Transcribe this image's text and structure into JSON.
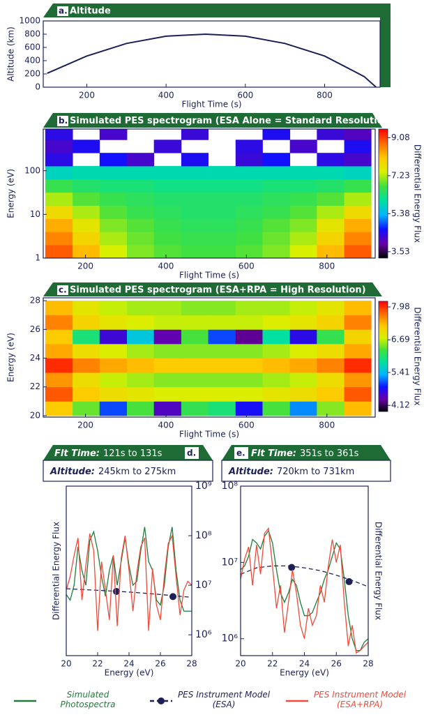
{
  "chart_data": [
    {
      "type": "line",
      "label": "a.",
      "title": "Altitude",
      "x_label": "Flight Time (s)",
      "y_label": "Altitude (km)",
      "x": [
        100,
        200,
        300,
        400,
        500,
        600,
        700,
        800,
        900,
        930
      ],
      "series": [
        {
          "color": "#1b2157",
          "values": [
            210,
            470,
            660,
            770,
            800,
            770,
            660,
            470,
            160,
            0
          ]
        }
      ],
      "xlim": [
        90,
        940
      ],
      "ylim": [
        0,
        1000
      ],
      "xticks": [
        200,
        400,
        600,
        800
      ],
      "yticks": [
        0,
        200,
        400,
        600,
        800,
        1000
      ]
    },
    {
      "type": "heatmap",
      "label": "b.",
      "title": "Simulated PES spectrogram (ESA Alone = Standard Resolution)",
      "x_label": "Flight Time (s)",
      "y_label": "Energy (eV)",
      "colorbar_label": "Differential Energy Flux",
      "y_log": true,
      "xlim": [
        95,
        920
      ],
      "ylim": [
        1,
        900
      ],
      "xticks": [
        200,
        400,
        600,
        800
      ],
      "yticks": [
        1,
        10,
        100
      ],
      "clim": [
        3.22,
        9.5
      ],
      "cticks": [
        3.53,
        5.38,
        7.23,
        9.08
      ],
      "colormap": [
        "#000000",
        "#6a00a8",
        "#1010ff",
        "#00b4ff",
        "#00e0a0",
        "#40e040",
        "#d8f000",
        "#ffc800",
        "#ff6a00",
        "#ff0000"
      ],
      "x_bins": [
        100,
        168,
        235,
        303,
        370,
        438,
        505,
        573,
        640,
        708,
        775,
        843,
        910
      ],
      "y_bins": [
        1,
        2,
        4,
        8,
        16,
        32,
        64,
        128,
        256,
        512,
        900
      ],
      "values": [
        [
          8.9,
          8.2,
          7.4,
          7.0,
          6.8,
          6.7,
          6.7,
          6.8,
          7.0,
          7.4,
          8.2,
          8.9
        ],
        [
          8.6,
          7.9,
          7.2,
          6.9,
          6.7,
          6.6,
          6.6,
          6.7,
          6.9,
          7.2,
          7.9,
          8.6
        ],
        [
          8.3,
          7.6,
          7.0,
          6.8,
          6.6,
          6.5,
          6.5,
          6.6,
          6.8,
          7.0,
          7.6,
          8.3
        ],
        [
          7.8,
          7.2,
          6.8,
          6.6,
          6.5,
          6.4,
          6.4,
          6.5,
          6.6,
          6.8,
          7.2,
          7.8
        ],
        [
          7.2,
          6.8,
          6.6,
          6.5,
          6.4,
          6.4,
          6.4,
          6.4,
          6.5,
          6.6,
          6.8,
          7.2
        ],
        [
          6.6,
          6.4,
          6.3,
          6.3,
          6.2,
          6.2,
          6.2,
          6.2,
          6.3,
          6.3,
          6.4,
          6.6
        ],
        [
          5.8,
          5.9,
          5.9,
          5.9,
          5.9,
          5.9,
          5.9,
          5.9,
          5.9,
          5.9,
          5.9,
          5.8
        ],
        [
          4.4,
          null,
          4.6,
          4.2,
          null,
          4.5,
          null,
          4.3,
          4.6,
          null,
          4.4,
          4.2
        ],
        [
          4.2,
          4.5,
          null,
          null,
          4.3,
          null,
          null,
          4.4,
          null,
          4.2,
          null,
          4.5
        ],
        [
          4.4,
          null,
          4.2,
          null,
          null,
          4.3,
          null,
          null,
          4.5,
          null,
          4.3,
          4.1
        ]
      ]
    },
    {
      "type": "heatmap",
      "label": "c.",
      "title": "Simulated PES spectrogram (ESA+RPA = High Resolution)",
      "x_label": "Flight Time (s)",
      "y_label": "Energy (eV)",
      "colorbar_label": "Differential Energy Flux",
      "y_log": false,
      "xlim": [
        95,
        920
      ],
      "ylim": [
        19.9,
        28.2
      ],
      "xticks": [
        200,
        400,
        600,
        800
      ],
      "yticks": [
        20,
        22,
        24,
        26,
        28
      ],
      "clim": [
        3.88,
        8.2
      ],
      "cticks": [
        4.12,
        5.41,
        6.69,
        7.98
      ],
      "colormap": [
        "#000000",
        "#6a00a8",
        "#1010ff",
        "#00b4ff",
        "#00e0a0",
        "#40e040",
        "#d8f000",
        "#ffc800",
        "#ff6a00",
        "#ff0000"
      ],
      "x_bins": [
        100,
        168,
        235,
        303,
        370,
        438,
        505,
        573,
        640,
        708,
        775,
        843,
        910
      ],
      "y_bins": [
        20,
        21,
        22,
        23,
        24,
        25,
        26,
        27,
        28
      ],
      "values": [
        [
          7.2,
          6.4,
          5.0,
          6.3,
          4.5,
          6.2,
          6.0,
          4.8,
          6.3,
          5.2,
          6.5,
          7.3
        ],
        [
          7.8,
          7.2,
          7.0,
          6.9,
          6.8,
          6.8,
          6.8,
          6.8,
          6.9,
          7.0,
          7.2,
          7.8
        ],
        [
          7.5,
          7.0,
          6.7,
          6.6,
          6.5,
          6.5,
          6.5,
          6.5,
          6.6,
          6.7,
          7.0,
          7.5
        ],
        [
          8.0,
          7.6,
          7.4,
          7.3,
          7.2,
          7.2,
          7.2,
          7.2,
          7.3,
          7.4,
          7.6,
          8.0
        ],
        [
          7.4,
          7.0,
          6.8,
          6.6,
          6.5,
          6.5,
          6.5,
          6.5,
          6.6,
          6.8,
          7.0,
          7.4
        ],
        [
          7.2,
          6.0,
          4.6,
          5.5,
          4.4,
          6.3,
          5.0,
          4.3,
          5.8,
          4.7,
          6.2,
          7.1
        ],
        [
          7.6,
          7.1,
          6.9,
          6.8,
          6.7,
          6.7,
          6.7,
          6.7,
          6.8,
          6.9,
          7.1,
          7.6
        ],
        [
          7.3,
          6.9,
          6.7,
          6.6,
          6.6,
          6.5,
          6.5,
          6.6,
          6.6,
          6.7,
          6.9,
          7.3
        ]
      ]
    },
    {
      "type": "line",
      "label": "d.",
      "label_side": "right",
      "time_label": "Flt Time:",
      "time_range": "121s to 131s",
      "altitude_label": "Altitude:",
      "altitude_range": "245km to 275km",
      "x_label": "Energy (eV)",
      "y_label": "Differential Energy Flux",
      "y_axis_side": "right",
      "y_log": true,
      "xlim": [
        20,
        28
      ],
      "ylim": [
        380000,
        1000000000
      ],
      "xticks": [
        20,
        22,
        24,
        26,
        28
      ],
      "yticks": [
        {
          "value": 1000000,
          "label": "10⁶"
        },
        {
          "value": 10000000,
          "label": "10⁷"
        },
        {
          "value": 100000000,
          "label": "10⁸"
        },
        {
          "value": 1000000000,
          "label": "10⁹"
        }
      ],
      "x": [
        20,
        20.25,
        20.5,
        20.75,
        21,
        21.25,
        21.5,
        21.75,
        22,
        22.25,
        22.5,
        22.75,
        23,
        23.25,
        23.5,
        23.75,
        24,
        24.25,
        24.5,
        24.75,
        25,
        25.25,
        25.5,
        25.75,
        26,
        26.25,
        26.5,
        26.75,
        27,
        27.25,
        27.5,
        27.75,
        28
      ],
      "series": [
        {
          "name": "Simulated Photospectra",
          "color": "#1e7d3a",
          "values": [
            6500000.0,
            5000000.0,
            10000000.0,
            60000000.0,
            20000000.0,
            10000000.0,
            80000000.0,
            120000000.0,
            50000000.0,
            15000000.0,
            6000000.0,
            20000000.0,
            40000000.0,
            10000000.0,
            30000000.0,
            90000000.0,
            25000000.0,
            10000000.0,
            12000000.0,
            50000000.0,
            150000000.0,
            30000000.0,
            20000000.0,
            5000000.0,
            4000000.0,
            10000000.0,
            60000000.0,
            150000000.0,
            20000000.0,
            5000000.0,
            3000000.0,
            3000000.0,
            3000000.0
          ]
        },
        {
          "name": "PES Instrument Model (ESA)",
          "color": "#1b2157",
          "dash": true,
          "x": [
            20,
            21,
            22,
            23,
            24,
            25,
            26,
            27,
            28
          ],
          "values": [
            8500000.0,
            8200000.0,
            7900000.0,
            7600000.0,
            7300000.0,
            6900000.0,
            6500000.0,
            6100000.0,
            5700000.0
          ],
          "points_x": [
            23.2,
            26.8
          ],
          "points": [
            7500000.0,
            5900000.0
          ]
        },
        {
          "name": "PES Instrument Model (ESA+RPA)",
          "color": "#f04a3a",
          "values": [
            8000000.0,
            15000000.0,
            40000000.0,
            90000000.0,
            5000000.0,
            25000000.0,
            110000000.0,
            50000000.0,
            1200000.0,
            30000000.0,
            8000000.0,
            2000000.0,
            40000000.0,
            1500000.0,
            35000000.0,
            100000000.0,
            20000000.0,
            3000000.0,
            18000000.0,
            60000000.0,
            90000000.0,
            1200000.0,
            22000000.0,
            4000000.0,
            2000000.0,
            15000000.0,
            70000000.0,
            100000000.0,
            15000000.0,
            2500000.0,
            8000000.0,
            12000000.0,
            10000000.0
          ]
        }
      ]
    },
    {
      "type": "line",
      "label": "e.",
      "label_side": "left",
      "time_label": "Flt Time:",
      "time_range": "351s to 361s",
      "altitude_label": "Altitude:",
      "altitude_range": "720km to 731km",
      "x_label": "Energy (eV)",
      "y_label": "Differential Energy Flux",
      "y_axis_side": "left",
      "y_log": true,
      "xlim": [
        20,
        28
      ],
      "ylim": [
        600000,
        100000000
      ],
      "xticks": [
        20,
        22,
        24,
        26,
        28
      ],
      "yticks": [
        {
          "value": 1000000,
          "label": "10⁶"
        },
        {
          "value": 10000000,
          "label": "10⁷"
        },
        {
          "value": 100000000,
          "label": "10⁸"
        }
      ],
      "x": [
        20,
        20.25,
        20.5,
        20.75,
        21,
        21.25,
        21.5,
        21.75,
        22,
        22.25,
        22.5,
        22.75,
        23,
        23.25,
        23.5,
        23.75,
        24,
        24.25,
        24.5,
        24.75,
        25,
        25.25,
        25.5,
        25.75,
        26,
        26.25,
        26.5,
        26.75,
        27,
        27.25,
        27.5,
        27.75,
        28
      ],
      "series": [
        {
          "color": "#1e7d3a",
          "values": [
            8000000.0,
            9000000.0,
            12000000.0,
            20000000.0,
            18000000.0,
            15000000.0,
            22000000.0,
            26000000.0,
            18000000.0,
            8000000.0,
            4000000.0,
            3000000.0,
            4000000.0,
            6000000.0,
            5000000.0,
            3000000.0,
            2000000.0,
            2000000.0,
            2200000.0,
            3000000.0,
            4000000.0,
            6000000.0,
            8000000.0,
            12000000.0,
            18000000.0,
            15000000.0,
            6000000.0,
            2000000.0,
            1000000.0,
            700000.0,
            700000.0,
            900000.0,
            1000000.0
          ]
        },
        {
          "color": "#1b2157",
          "dash": true,
          "x": [
            20,
            21,
            22,
            23,
            24,
            25,
            26,
            27,
            28
          ],
          "values": [
            7000000.0,
            8500000.0,
            9000000.0,
            9000000.0,
            8500000.0,
            7800000.0,
            6800000.0,
            5800000.0,
            4800000.0
          ],
          "points_x": [
            23.2,
            26.8
          ],
          "points": [
            8600000.0,
            5600000.0
          ]
        },
        {
          "color": "#f04a3a",
          "values": [
            6000000.0,
            11000000.0,
            16000000.0,
            5000000.0,
            17000000.0,
            7000000.0,
            24000000.0,
            28000000.0,
            9000000.0,
            2500000.0,
            5000000.0,
            1200000.0,
            3000000.0,
            8000000.0,
            4000000.0,
            1500000.0,
            1000000.0,
            2500000.0,
            1500000.0,
            2000000.0,
            5000000.0,
            3000000.0,
            9000000.0,
            20000000.0,
            10000000.0,
            17000000.0,
            3000000.0,
            800000.0,
            1500000.0,
            650000.0,
            700000.0,
            800000.0,
            900000.0
          ]
        }
      ]
    }
  ]
}
